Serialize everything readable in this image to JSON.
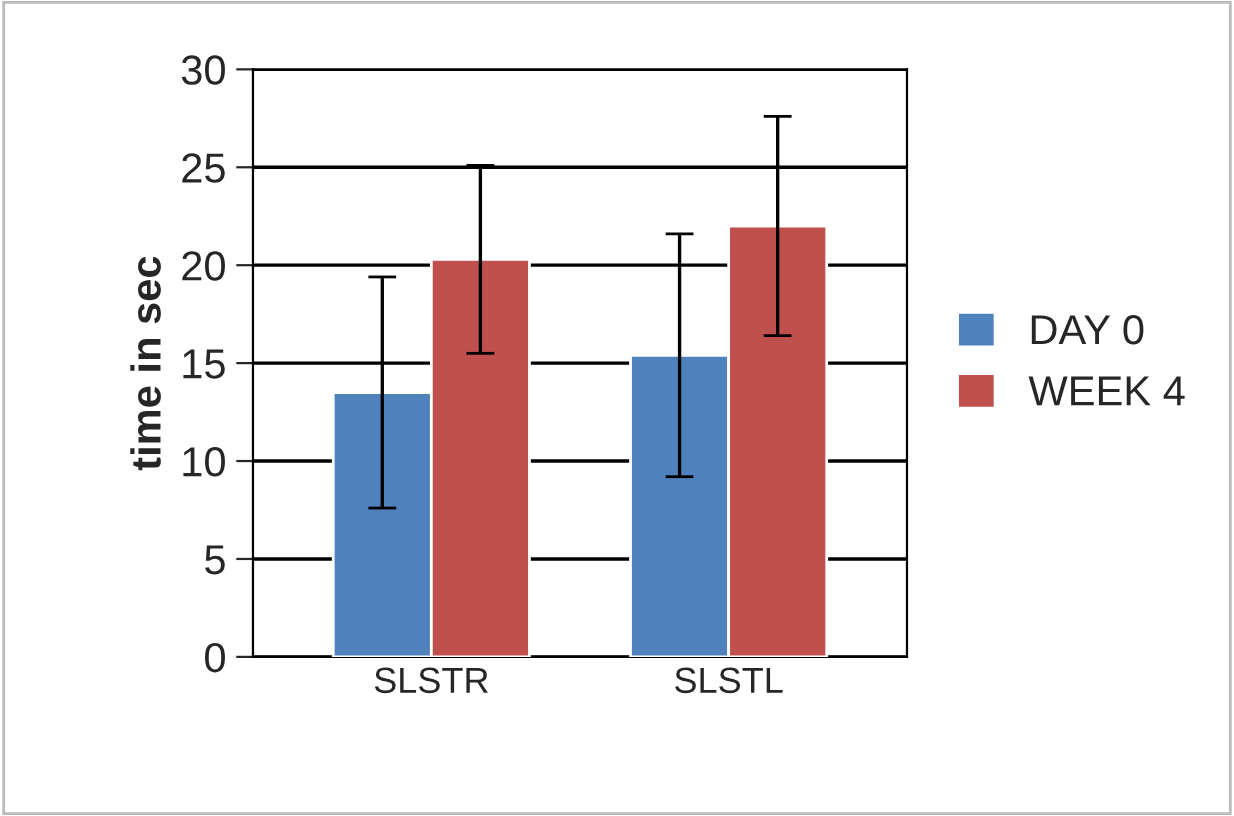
{
  "chart_data": {
    "type": "bar",
    "ylabel": "time in sec",
    "categories": [
      "SLSTR",
      "SLSTL"
    ],
    "series": [
      {
        "name": "DAY 0",
        "color": "#4f81bd",
        "values": [
          13.5,
          15.4
        ],
        "errors": [
          5.9,
          6.2
        ]
      },
      {
        "name": "WEEK 4",
        "color": "#c0504d",
        "values": [
          20.3,
          22.0
        ],
        "errors": [
          4.8,
          5.6
        ]
      }
    ],
    "ylim": [
      0,
      30
    ],
    "yticks": [
      0,
      5,
      10,
      15,
      20,
      25,
      30
    ],
    "grid": "y",
    "legend": "right"
  }
}
